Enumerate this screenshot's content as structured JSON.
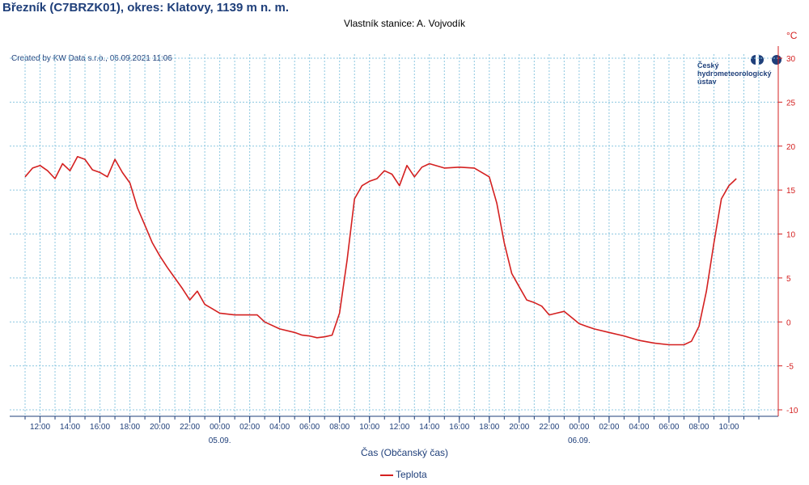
{
  "header": {
    "title": "Březník (C7BRZK01), okres: Klatovy, 1139 m n. m.",
    "subtitle": "Vlastník stanice: A. Vojvodík",
    "created": "Created by KW Data s.r.o., 06.09.2021 11:06",
    "unit": "°C"
  },
  "logo": {
    "lines": [
      "Český",
      "hydrometeorologický",
      "ústav"
    ],
    "color": "#1f3f7a"
  },
  "chart_data": {
    "type": "line",
    "title": "Březník (C7BRZK01), okres: Klatovy, 1139 m n. m.",
    "xlabel": "Čas (Občanský čas)",
    "ylabel": "°C",
    "ylim": [
      -10,
      30
    ],
    "yticks": [
      -10,
      -5,
      0,
      5,
      10,
      15,
      20,
      25,
      30
    ],
    "y_axis_side": "right",
    "grid": true,
    "legend_position": "bottom-center",
    "x_range": [
      "2021-09-04 11:00",
      "2021-09-06 12:00"
    ],
    "x_ticks": [
      "12:00",
      "14:00",
      "16:00",
      "18:00",
      "20:00",
      "22:00",
      "00:00",
      "02:00",
      "04:00",
      "06:00",
      "08:00",
      "10:00",
      "12:00",
      "14:00",
      "16:00",
      "18:00",
      "20:00",
      "22:00",
      "00:00",
      "02:00",
      "04:00",
      "06:00",
      "08:00",
      "10:00"
    ],
    "x_date_labels": [
      {
        "at": "00:00",
        "index": 6,
        "text": "05.09."
      },
      {
        "at": "00:00",
        "index": 18,
        "text": "06.09."
      }
    ],
    "colors": {
      "series": "#d42020",
      "grid": "#8cc7e0",
      "axis": "#1f3f7a",
      "y_ticks": "#d42020"
    },
    "series": [
      {
        "name": "Teplota",
        "x": [
          "2021-09-04 11:00",
          "2021-09-04 11:30",
          "2021-09-04 12:00",
          "2021-09-04 12:30",
          "2021-09-04 13:00",
          "2021-09-04 13:30",
          "2021-09-04 14:00",
          "2021-09-04 14:30",
          "2021-09-04 15:00",
          "2021-09-04 15:30",
          "2021-09-04 16:00",
          "2021-09-04 16:30",
          "2021-09-04 17:00",
          "2021-09-04 17:30",
          "2021-09-04 18:00",
          "2021-09-04 18:30",
          "2021-09-04 19:00",
          "2021-09-04 19:30",
          "2021-09-04 20:00",
          "2021-09-04 20:30",
          "2021-09-04 21:00",
          "2021-09-04 21:30",
          "2021-09-04 22:00",
          "2021-09-04 22:30",
          "2021-09-04 23:00",
          "2021-09-04 23:30",
          "2021-09-05 00:00",
          "2021-09-05 01:00",
          "2021-09-05 02:00",
          "2021-09-05 02:30",
          "2021-09-05 03:00",
          "2021-09-05 04:00",
          "2021-09-05 05:00",
          "2021-09-05 05:30",
          "2021-09-05 06:00",
          "2021-09-05 06:30",
          "2021-09-05 07:00",
          "2021-09-05 07:30",
          "2021-09-05 08:00",
          "2021-09-05 08:30",
          "2021-09-05 09:00",
          "2021-09-05 09:30",
          "2021-09-05 10:00",
          "2021-09-05 10:30",
          "2021-09-05 11:00",
          "2021-09-05 11:30",
          "2021-09-05 12:00",
          "2021-09-05 12:30",
          "2021-09-05 13:00",
          "2021-09-05 13:30",
          "2021-09-05 14:00",
          "2021-09-05 15:00",
          "2021-09-05 16:00",
          "2021-09-05 17:00",
          "2021-09-05 18:00",
          "2021-09-05 18:30",
          "2021-09-05 19:00",
          "2021-09-05 19:30",
          "2021-09-05 20:00",
          "2021-09-05 20:30",
          "2021-09-05 21:00",
          "2021-09-05 21:30",
          "2021-09-05 22:00",
          "2021-09-05 22:30",
          "2021-09-05 23:00",
          "2021-09-05 23:30",
          "2021-09-06 00:00",
          "2021-09-06 00:30",
          "2021-09-06 01:00",
          "2021-09-06 02:00",
          "2021-09-06 03:00",
          "2021-09-06 04:00",
          "2021-09-06 05:00",
          "2021-09-06 06:00",
          "2021-09-06 07:00",
          "2021-09-06 07:30",
          "2021-09-06 08:00",
          "2021-09-06 08:30",
          "2021-09-06 09:00",
          "2021-09-06 09:30",
          "2021-09-06 10:00",
          "2021-09-06 10:30"
        ],
        "values": [
          16.5,
          17.5,
          17.8,
          17.2,
          16.3,
          18.0,
          17.2,
          18.8,
          18.5,
          17.3,
          17.0,
          16.5,
          18.5,
          17.0,
          15.8,
          13.0,
          11.0,
          9.0,
          7.5,
          6.2,
          5.0,
          3.8,
          2.5,
          3.5,
          2.0,
          1.5,
          1.0,
          0.8,
          0.8,
          0.8,
          0.0,
          -0.8,
          -1.2,
          -1.5,
          -1.6,
          -1.8,
          -1.7,
          -1.5,
          1.0,
          7.0,
          14.0,
          15.5,
          16.0,
          16.3,
          17.2,
          16.8,
          15.5,
          17.8,
          16.5,
          17.6,
          18.0,
          17.5,
          17.6,
          17.5,
          16.5,
          13.5,
          9.0,
          5.5,
          4.0,
          2.5,
          2.2,
          1.8,
          0.8,
          1.0,
          1.2,
          0.5,
          -0.2,
          -0.5,
          -0.8,
          -1.2,
          -1.6,
          -2.1,
          -2.4,
          -2.6,
          -2.6,
          -2.2,
          -0.5,
          3.5,
          9.0,
          14.0,
          15.5,
          16.3
        ]
      }
    ]
  }
}
